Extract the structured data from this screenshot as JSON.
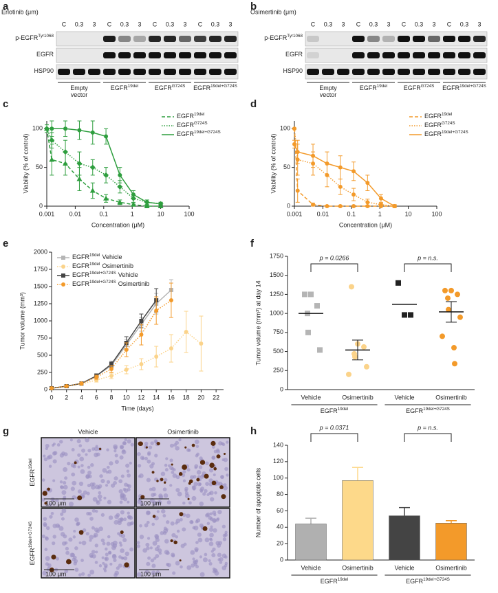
{
  "panel_labels": [
    "a",
    "b",
    "c",
    "d",
    "e",
    "f",
    "g",
    "h"
  ],
  "blots": [
    {
      "drug": "Erlotinib (μm)",
      "doses": [
        "C",
        "0.3",
        "3",
        "C",
        "0.3",
        "3",
        "C",
        "0.3",
        "3",
        "C",
        "0.3",
        "3"
      ],
      "rows": [
        {
          "base": "p-EGFR",
          "sup": "Tyr1068"
        },
        {
          "base": "EGFR"
        },
        {
          "base": "HSP90"
        }
      ],
      "groups": [
        {
          "lines": [
            "Empty",
            "vector"
          ]
        },
        {
          "base": "EGFR",
          "sup": "19del"
        },
        {
          "base": "EGFR",
          "sup": "G724S"
        },
        {
          "base": "EGFR",
          "sup": "19del+G724S"
        }
      ]
    },
    {
      "drug": "Osimertinib (μm)",
      "doses": [
        "C",
        "0.3",
        "3",
        "C",
        "0.3",
        "3",
        "C",
        "0.3",
        "3",
        "C",
        "0.3",
        "3"
      ],
      "rows": [
        {
          "base": "p-EGFR",
          "sup": "Tyr1068"
        },
        {
          "base": "EGFR"
        },
        {
          "base": "HSP90"
        }
      ],
      "groups": [
        {
          "lines": [
            "Empty",
            "vector"
          ]
        },
        {
          "base": "EGFR",
          "sup": "19del"
        },
        {
          "base": "EGFR",
          "sup": "G724S"
        },
        {
          "base": "EGFR",
          "sup": "19del+G724S"
        }
      ]
    }
  ],
  "histology": {
    "columns": [
      "Vehicle",
      "Osimertinib"
    ],
    "rows": [
      {
        "base": "EGFR",
        "sup": "19del"
      },
      {
        "base": "EGFR",
        "sup": "19del+G724S"
      }
    ],
    "scale_bar": "100 μm"
  },
  "chart_data": [
    {
      "type": "line",
      "xlog": true,
      "xlabel": "Concentration (μM)",
      "ylabel": "Viability (% of control)",
      "x": [
        0.001,
        0.0015,
        0.0045,
        0.014,
        0.041,
        0.12,
        0.37,
        1.1,
        3.3,
        10
      ],
      "xlim": [
        0.001,
        100
      ],
      "xticks": [
        0.001,
        0.01,
        0.1,
        1,
        10,
        100
      ],
      "ylim": [
        0,
        110
      ],
      "yticks": [
        0,
        50,
        100
      ],
      "legend": "upper right",
      "series": [
        {
          "name": {
            "base": "EGFR",
            "sup": "19del"
          },
          "color": "#2e9e3e",
          "style": "dashed",
          "marker": "triangle",
          "values": [
            100,
            60,
            55,
            35,
            20,
            10,
            5,
            2,
            0,
            0
          ],
          "errors": [
            0,
            20,
            15,
            15,
            10,
            5,
            3,
            2,
            1,
            1
          ]
        },
        {
          "name": {
            "base": "EGFR",
            "sup": "G724S"
          },
          "color": "#2e9e3e",
          "style": "dotted",
          "marker": "diamond",
          "values": [
            100,
            85,
            70,
            55,
            50,
            40,
            25,
            10,
            5,
            3
          ],
          "errors": [
            0,
            10,
            15,
            15,
            10,
            10,
            8,
            5,
            3,
            2
          ]
        },
        {
          "name": {
            "base": "EGFR",
            "sup": "19del+G724S"
          },
          "color": "#2e9e3e",
          "style": "solid",
          "marker": "circle",
          "values": [
            100,
            100,
            100,
            98,
            95,
            90,
            40,
            15,
            5,
            3
          ],
          "errors": [
            5,
            10,
            10,
            12,
            15,
            10,
            10,
            5,
            3,
            2
          ]
        }
      ]
    },
    {
      "type": "line",
      "xlog": true,
      "xlabel": "Concentration (μM)",
      "ylabel": "Viability (% of control)",
      "x": [
        0.001,
        0.0013,
        0.0045,
        0.014,
        0.041,
        0.12,
        0.37,
        1.1,
        3.3
      ],
      "xlim": [
        0.001,
        100
      ],
      "xticks": [
        0.001,
        0.01,
        0.1,
        1,
        10,
        100
      ],
      "ylim": [
        0,
        110
      ],
      "yticks": [
        0,
        50,
        100
      ],
      "legend": "upper right",
      "series": [
        {
          "name": {
            "base": "EGFR",
            "sup": "19del"
          },
          "color": "#f39a2a",
          "style": "dashed",
          "marker": "circle",
          "values": [
            100,
            20,
            2,
            0,
            0,
            0,
            0,
            0,
            0
          ],
          "errors": [
            0,
            15,
            2,
            1,
            1,
            1,
            1,
            1,
            1
          ]
        },
        {
          "name": {
            "base": "EGFR",
            "sup": "G724S"
          },
          "color": "#f39a2a",
          "style": "dotted",
          "marker": "circle",
          "values": [
            100,
            60,
            55,
            40,
            25,
            15,
            5,
            2,
            0
          ],
          "errors": [
            0,
            20,
            15,
            15,
            10,
            8,
            4,
            2,
            1
          ]
        },
        {
          "name": {
            "base": "EGFR",
            "sup": "19del+G724S"
          },
          "color": "#f39a2a",
          "style": "solid",
          "marker": "circle",
          "values": [
            80,
            70,
            65,
            55,
            50,
            45,
            30,
            10,
            0
          ],
          "errors": [
            5,
            15,
            15,
            15,
            15,
            12,
            10,
            5,
            2
          ]
        }
      ]
    },
    {
      "type": "line",
      "xlabel": "Time (days)",
      "ylabel": "Tumor volume (mm³)",
      "xlim": [
        0,
        23
      ],
      "xticks": [
        0,
        2,
        4,
        6,
        8,
        10,
        12,
        14,
        16,
        18,
        20,
        22
      ],
      "ylim": [
        0,
        2000
      ],
      "yticks": [
        0,
        250,
        500,
        750,
        1000,
        1250,
        1500,
        1750,
        2000
      ],
      "legend": "upper left",
      "series": [
        {
          "name": {
            "base": "EGFR",
            "sup": "19del",
            "rest": "Vehicle"
          },
          "color": "#b5b5b5",
          "style": "solid",
          "marker": "square",
          "x": [
            0,
            2,
            4,
            6,
            8,
            10,
            12,
            14,
            16
          ],
          "values": [
            20,
            50,
            90,
            200,
            350,
            650,
            950,
            1250,
            1450
          ],
          "errors": [
            5,
            10,
            15,
            30,
            40,
            80,
            100,
            150,
            150
          ]
        },
        {
          "name": {
            "base": "EGFR",
            "sup": "19del",
            "rest": "Osimertinib"
          },
          "color": "#fbd38a",
          "style": "dotted",
          "marker": "circle",
          "x": [
            0,
            2,
            4,
            6,
            8,
            10,
            12,
            14,
            16,
            18,
            20
          ],
          "values": [
            20,
            50,
            80,
            140,
            200,
            290,
            370,
            480,
            600,
            840,
            670
          ],
          "errors": [
            5,
            10,
            15,
            30,
            40,
            60,
            80,
            150,
            200,
            300,
            400
          ]
        },
        {
          "name": {
            "base": "EGFR",
            "sup": "19del+G724S",
            "rest": "Vehicle"
          },
          "color": "#444444",
          "style": "solid",
          "marker": "square",
          "x": [
            0,
            2,
            4,
            6,
            8,
            10,
            12,
            14
          ],
          "values": [
            20,
            50,
            90,
            200,
            370,
            680,
            1000,
            1300
          ],
          "errors": [
            5,
            10,
            15,
            30,
            40,
            90,
            100,
            170
          ]
        },
        {
          "name": {
            "base": "EGFR",
            "sup": "19del+G724S",
            "rest": "Osimertinib"
          },
          "color": "#f39a2a",
          "style": "dotted",
          "marker": "circle",
          "x": [
            0,
            2,
            4,
            6,
            8,
            10,
            12,
            14,
            16
          ],
          "values": [
            20,
            50,
            90,
            180,
            300,
            580,
            800,
            1150,
            1300
          ],
          "errors": [
            5,
            10,
            15,
            30,
            50,
            100,
            150,
            200,
            250
          ]
        }
      ]
    },
    {
      "type": "dot",
      "ylabel": "Tumor volume (mm³) at day 14",
      "categories": [
        "Vehicle",
        "Osimertinib",
        "Vehicle",
        "Osimertinib"
      ],
      "groups": [
        {
          "base": "EGFR",
          "sup": "19del"
        },
        {
          "base": "EGFR",
          "sup": "19del+G724S"
        }
      ],
      "ylim": [
        0,
        1750
      ],
      "yticks": [
        0,
        250,
        500,
        750,
        1000,
        1250,
        1500,
        1750
      ],
      "colors": [
        "#b5b5b5",
        "#fbd38a",
        "#222222",
        "#f39a2a"
      ],
      "markers": [
        "square",
        "circle",
        "square",
        "circle"
      ],
      "points": [
        [
          1250,
          1250,
          1100,
          1000,
          750,
          520
        ],
        [
          1350,
          600,
          560,
          470,
          430,
          300,
          200
        ],
        [
          1400,
          980,
          980
        ],
        [
          1300,
          1300,
          1250,
          1200,
          1050,
          950,
          700,
          550,
          340
        ]
      ],
      "means": [
        1000,
        520,
        1120,
        1020
      ],
      "sems": [
        0,
        130,
        0,
        135
      ],
      "annotations": [
        "p = 0.0266",
        "p = n.s."
      ]
    },
    {
      "type": "bar",
      "ylabel": "Number of apoptotic cells",
      "categories": [
        "Vehicle",
        "Osimertinib",
        "Vehicle",
        "Osimertinib"
      ],
      "groups": [
        {
          "base": "EGFR",
          "sup": "19del"
        },
        {
          "base": "EGFR",
          "sup": "19del+G724S"
        }
      ],
      "ylim": [
        0,
        140
      ],
      "yticks": [
        0,
        20,
        40,
        60,
        80,
        100,
        120,
        140
      ],
      "colors": [
        "#b0b0b0",
        "#fdd98a",
        "#444444",
        "#f39a2a"
      ],
      "values": [
        44,
        97,
        54,
        45
      ],
      "errors": [
        7,
        16,
        10,
        3
      ],
      "annotations": [
        "p = 0.0371",
        "p = n.s."
      ]
    }
  ]
}
